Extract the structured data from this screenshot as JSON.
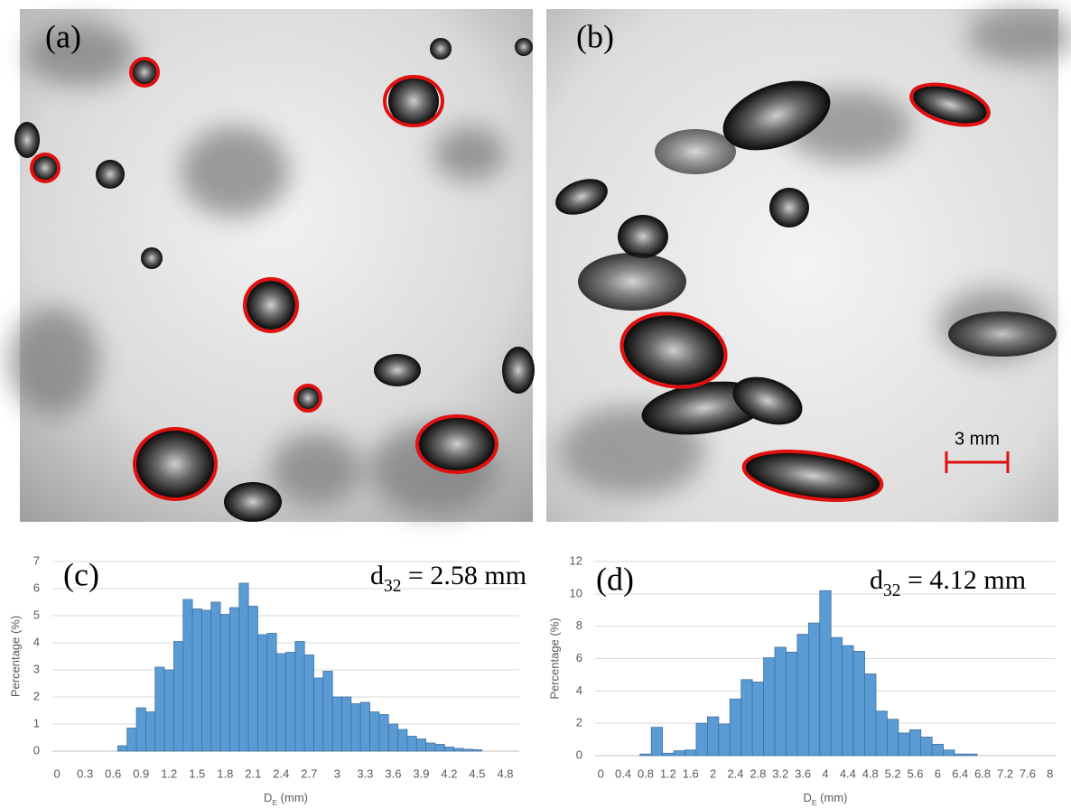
{
  "images": [
    {
      "label": "(a)"
    },
    {
      "label": "(b)",
      "scale_bar": "3 mm"
    }
  ],
  "chart_data": [
    {
      "type": "bar",
      "label": "(c)",
      "annotation": {
        "base": "d",
        "sub": "32",
        "rest": " = 2.58 mm"
      },
      "x_label": {
        "base": "D",
        "sub": "E",
        "rest": " (mm)"
      },
      "y_label": "Percentage (%)",
      "categories": [
        "0",
        null,
        null,
        "0.3",
        null,
        null,
        "0.6",
        null,
        null,
        "0.9",
        null,
        null,
        "1.2",
        null,
        null,
        "1.5",
        null,
        null,
        "1.8",
        null,
        null,
        "2.1",
        null,
        null,
        "2.4",
        null,
        null,
        "2.7",
        null,
        null,
        "3",
        null,
        null,
        "3.3",
        null,
        null,
        "3.6",
        null,
        null,
        "3.9",
        null,
        null,
        "4.2",
        null,
        null,
        "4.5",
        null,
        null,
        "4.8",
        null
      ],
      "values": [
        0,
        0,
        0,
        0,
        0,
        0,
        0,
        0.2,
        0.85,
        1.6,
        1.45,
        3.1,
        3.0,
        4.05,
        5.6,
        5.25,
        5.2,
        5.5,
        5.05,
        5.3,
        6.2,
        5.35,
        4.3,
        4.35,
        3.6,
        3.65,
        4.05,
        3.55,
        2.7,
        2.95,
        2.0,
        2.0,
        1.75,
        1.8,
        1.45,
        1.35,
        1.0,
        0.8,
        0.55,
        0.45,
        0.3,
        0.25,
        0.15,
        0.1,
        0.07,
        0.05,
        0,
        0,
        0,
        0
      ],
      "color": "#5b9bd5",
      "ylim": [
        0,
        7
      ],
      "yticks": [
        0,
        1,
        2,
        3,
        4,
        5,
        6,
        7
      ],
      "grid": true
    },
    {
      "type": "bar",
      "label": "(d)",
      "annotation": {
        "base": "d",
        "sub": "32",
        "rest": " = 4.12 mm"
      },
      "x_label": {
        "base": "D",
        "sub": "E",
        "rest": " (mm)"
      },
      "y_label": "Percentage (%)",
      "categories": [
        "0",
        null,
        "0.4",
        null,
        "0.8",
        null,
        "1.2",
        null,
        "1.6",
        null,
        "2",
        null,
        "2.4",
        null,
        "2.8",
        null,
        "3.2",
        null,
        "3.6",
        null,
        "4",
        null,
        "4.4",
        null,
        "4.8",
        null,
        "5.2",
        null,
        "5.6",
        null,
        "6",
        null,
        "6.4",
        null,
        "6.8",
        null,
        "7.2",
        null,
        "7.6",
        null,
        "8"
      ],
      "values": [
        0,
        0,
        0,
        0,
        0.1,
        1.75,
        0.15,
        0.3,
        0.35,
        2.0,
        2.4,
        1.95,
        3.5,
        4.7,
        4.55,
        6.05,
        6.7,
        6.4,
        7.5,
        8.2,
        10.2,
        7.3,
        6.8,
        6.45,
        5.05,
        2.75,
        2.25,
        1.4,
        1.6,
        1.15,
        0.7,
        0.35,
        0.1,
        0.1,
        0,
        0,
        0,
        0,
        0,
        0,
        0
      ],
      "color": "#5b9bd5",
      "ylim": [
        0,
        12
      ],
      "yticks": [
        0,
        2,
        4,
        6,
        8,
        10,
        12
      ],
      "grid": true
    }
  ]
}
